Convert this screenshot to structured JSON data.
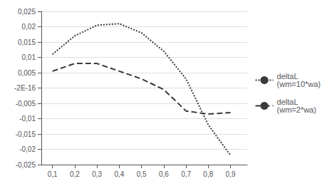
{
  "chart_data": {
    "type": "line",
    "x": [
      0.1,
      0.2,
      0.3,
      0.4,
      0.5,
      0.6,
      0.7,
      0.8,
      0.9
    ],
    "series": [
      {
        "name": "deltaL\n(wm=10*wa)",
        "color": "#3a3a3a",
        "line_style": "dotted",
        "values": [
          0.011,
          0.017,
          0.0205,
          0.021,
          0.018,
          0.012,
          0.003,
          -0.012,
          -0.022
        ]
      },
      {
        "name": "deltaL\n(wm=2*wa)",
        "color": "#3a3a3a",
        "line_style": "dashed",
        "values": [
          0.0055,
          0.008,
          0.008,
          0.0055,
          0.003,
          -0.0005,
          -0.0075,
          -0.0085,
          -0.008
        ]
      }
    ],
    "xlim": [
      0.05,
      0.975
    ],
    "xticks": [
      {
        "value": 0.1,
        "label": "0,1"
      },
      {
        "value": 0.2,
        "label": "0,2"
      },
      {
        "value": 0.3,
        "label": "0,3"
      },
      {
        "value": 0.4,
        "label": "0,4"
      },
      {
        "value": 0.5,
        "label": "0,5"
      },
      {
        "value": 0.6,
        "label": "0,6"
      },
      {
        "value": 0.7,
        "label": "0,7"
      },
      {
        "value": 0.8,
        "label": "0,8"
      },
      {
        "value": 0.9,
        "label": "0,9"
      }
    ],
    "ylim": [
      -0.025,
      0.025
    ],
    "yticks": [
      {
        "value": -0.025,
        "label": "-0,025"
      },
      {
        "value": -0.02,
        "label": "-0,02"
      },
      {
        "value": -0.015,
        "label": "-0,015"
      },
      {
        "value": -0.01,
        "label": "-0,01"
      },
      {
        "value": -0.005,
        "label": "-0,005"
      },
      {
        "value": 0,
        "label": "-2E-16"
      },
      {
        "value": 0.005,
        "label": "0,005"
      },
      {
        "value": 0.01,
        "label": "0,01"
      },
      {
        "value": 0.015,
        "label": "0,015"
      },
      {
        "value": 0.02,
        "label": "0,02"
      },
      {
        "value": 0.025,
        "label": "0,025"
      }
    ],
    "grid": true,
    "legend": "right"
  }
}
